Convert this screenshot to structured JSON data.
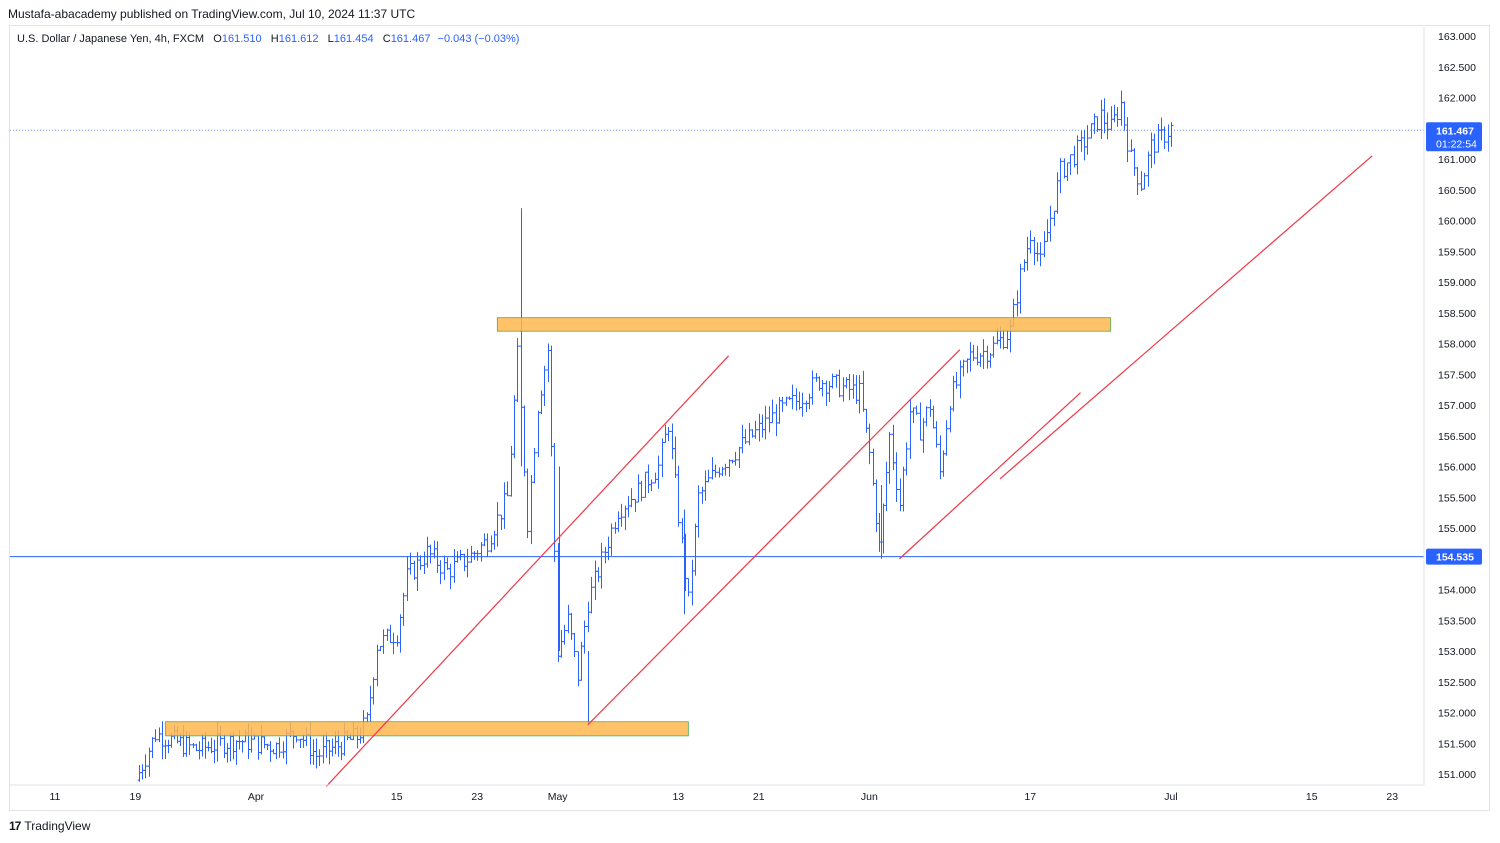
{
  "publisher": "Mustafa-abacademy published on TradingView.com, Jul 10, 2024 11:37 UTC",
  "legend": {
    "symbol": "U.S. Dollar / Japanese Yen, 4h, FXCM",
    "o_label": "O",
    "o_value": "161.510",
    "h_label": "H",
    "h_value": "161.612",
    "l_label": "L",
    "l_value": "161.454",
    "c_label": "C",
    "c_value": "161.467",
    "change": "−0.043 (−0.03%)"
  },
  "price_badge": {
    "value": "161.467",
    "countdown": "01:22:54"
  },
  "line_badge": {
    "value": "154.535"
  },
  "footer": {
    "logo": "17",
    "brand": "TradingView"
  },
  "colors": {
    "candle": "#2962ff",
    "trend": "#f23645",
    "zone_fill": "#ffb74d",
    "zone_border": "#4caf50",
    "hline": "#2962ff",
    "badge": "#2962ff"
  },
  "chart_data": {
    "type": "candlestick",
    "title": "U.S. Dollar / Japanese Yen, 4h, FXCM",
    "y_ticks": [
      "163.000",
      "162.500",
      "162.000",
      "161.500",
      "161.000",
      "160.500",
      "160.000",
      "159.500",
      "159.000",
      "158.500",
      "158.000",
      "157.500",
      "157.000",
      "156.500",
      "156.000",
      "155.500",
      "155.000",
      "154.500",
      "154.000",
      "153.500",
      "153.000",
      "152.500",
      "152.000",
      "151.500",
      "151.000"
    ],
    "ylim": [
      150.8,
      163.1
    ],
    "x_ticks": [
      {
        "label": "11",
        "day": -20
      },
      {
        "label": "19",
        "day": -12
      },
      {
        "label": "Apr",
        "day": 0
      },
      {
        "label": "15",
        "day": 14
      },
      {
        "label": "23",
        "day": 22
      },
      {
        "label": "May",
        "day": 30
      },
      {
        "label": "13",
        "day": 42
      },
      {
        "label": "21",
        "day": 50
      },
      {
        "label": "Jun",
        "day": 61
      },
      {
        "label": "17",
        "day": 77
      },
      {
        "label": "Jul",
        "day": 91
      },
      {
        "label": "15",
        "day": 105
      },
      {
        "label": "23",
        "day": 113
      }
    ],
    "xlim_days": [
      -23,
      120
    ],
    "last_price": 161.467,
    "horizontal_line": 154.535,
    "zones": [
      {
        "day_start": -9,
        "day_end": 43,
        "price_top": 151.85,
        "price_bottom": 151.62
      },
      {
        "day_start": 24,
        "day_end": 85,
        "price_top": 158.42,
        "price_bottom": 158.2
      }
    ],
    "trendlines": [
      {
        "day1": 7,
        "price1": 150.8,
        "day2": 47,
        "price2": 157.8
      },
      {
        "day1": 33,
        "price1": 151.8,
        "day2": 70,
        "price2": 157.9
      },
      {
        "day1": 64,
        "price1": 154.5,
        "day2": 82,
        "price2": 157.2
      },
      {
        "day1": 74,
        "price1": 155.8,
        "day2": 111,
        "price2": 161.05
      }
    ],
    "path": [
      [
        -12,
        150.9
      ],
      [
        -10,
        151.65
      ],
      [
        -6,
        151.4
      ],
      [
        -2,
        151.55
      ],
      [
        2,
        151.45
      ],
      [
        4,
        151.7
      ],
      [
        6,
        151.3
      ],
      [
        10,
        151.6
      ],
      [
        11,
        151.85
      ],
      [
        12,
        153.1
      ],
      [
        14,
        153.3
      ],
      [
        15,
        154.2
      ],
      [
        17,
        154.6
      ],
      [
        19,
        154.3
      ],
      [
        21,
        154.5
      ],
      [
        23,
        154.8
      ],
      [
        25,
        155.5
      ],
      [
        26,
        157.8
      ],
      [
        27,
        155.1
      ],
      [
        28,
        157.0
      ],
      [
        29,
        157.9
      ],
      [
        30,
        153.0
      ],
      [
        31,
        153.5
      ],
      [
        32,
        152.6
      ],
      [
        33,
        153.8
      ],
      [
        35,
        154.8
      ],
      [
        36,
        155.3
      ],
      [
        38,
        155.6
      ],
      [
        40,
        156.0
      ],
      [
        41,
        156.7
      ],
      [
        42,
        155.2
      ],
      [
        43,
        153.8
      ],
      [
        44,
        155.5
      ],
      [
        46,
        156.0
      ],
      [
        48,
        156.3
      ],
      [
        50,
        156.6
      ],
      [
        52,
        156.9
      ],
      [
        54,
        157.1
      ],
      [
        56,
        157.4
      ],
      [
        58,
        157.3
      ],
      [
        60,
        157.2
      ],
      [
        61,
        156.2
      ],
      [
        62,
        154.7
      ],
      [
        63,
        156.5
      ],
      [
        64,
        155.4
      ],
      [
        65,
        156.9
      ],
      [
        66,
        156.6
      ],
      [
        67,
        157.0
      ],
      [
        68,
        155.9
      ],
      [
        69,
        157.1
      ],
      [
        71,
        157.8
      ],
      [
        73,
        157.9
      ],
      [
        75,
        158.2
      ],
      [
        76,
        159.1
      ],
      [
        77,
        159.8
      ],
      [
        78,
        159.3
      ],
      [
        80,
        160.8
      ],
      [
        82,
        161.2
      ],
      [
        84,
        161.7
      ],
      [
        85,
        161.5
      ],
      [
        86,
        161.9
      ],
      [
        87,
        161.0
      ],
      [
        88,
        160.6
      ],
      [
        89,
        161.2
      ],
      [
        91,
        161.5
      ]
    ]
  }
}
